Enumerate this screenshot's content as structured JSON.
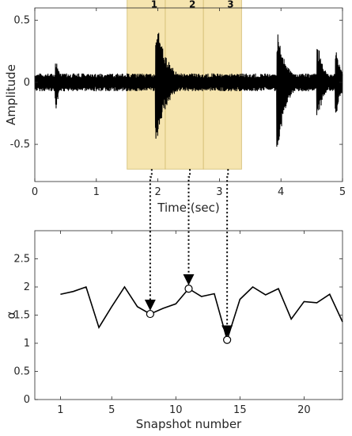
{
  "chart_data": [
    {
      "type": "line",
      "subtype": "waveform",
      "xlabel": "Time (sec)",
      "ylabel": "Amplitude",
      "xlim": [
        0,
        5
      ],
      "ylim": [
        -0.8,
        0.6
      ],
      "xticks": [
        "0",
        "1",
        "2",
        "3",
        "4",
        "5"
      ],
      "yticks": [
        "-0.5",
        "0",
        "0.5"
      ],
      "xtick_values": [
        0,
        1,
        2,
        3,
        4,
        5
      ],
      "ytick_values": [
        -0.5,
        0,
        0.5
      ],
      "highlight_segments": [
        {
          "label": "1",
          "x_start": 1.5,
          "x_end": 2.12
        },
        {
          "label": "2",
          "x_start": 2.12,
          "x_end": 2.74
        },
        {
          "label": "3",
          "x_start": 2.74,
          "x_end": 3.36
        }
      ],
      "segment_ylim": [
        -0.7,
        0.7
      ],
      "bursts": [
        {
          "time": 1.98,
          "peak_pos": 0.5,
          "peak_neg": -0.48,
          "decay": 0.18
        },
        {
          "time": 3.95,
          "peak_pos": 0.43,
          "peak_neg": -0.55,
          "decay": 0.14
        },
        {
          "time": 4.6,
          "peak_pos": 0.32,
          "peak_neg": -0.32,
          "decay": 0.1
        },
        {
          "time": 4.9,
          "peak_pos": 0.28,
          "peak_neg": -0.3,
          "decay": 0.08
        },
        {
          "time": 0.35,
          "peak_pos": 0.2,
          "peak_neg": -0.22,
          "decay": 0.06
        }
      ],
      "noise_amplitude": 0.06,
      "colors": {
        "waveform": "#000000",
        "segment_fill": "#f6e3a8",
        "segment_stroke": "#d8c27a"
      }
    },
    {
      "type": "line",
      "xlabel": "Snapshot number",
      "ylabel": "α",
      "xlim": [
        -1,
        23
      ],
      "ylim": [
        0,
        3
      ],
      "xticks": [
        "1",
        "5",
        "10",
        "15",
        "20"
      ],
      "xtick_values": [
        1,
        5,
        10,
        15,
        20
      ],
      "yticks": [
        "0",
        "0.5",
        "1",
        "1.5",
        "2",
        "2.5"
      ],
      "ytick_values": [
        0,
        0.5,
        1,
        1.5,
        2,
        2.5
      ],
      "x": [
        1,
        2,
        3,
        4,
        5,
        6,
        7,
        8,
        9,
        10,
        11,
        12,
        13,
        14,
        15,
        16,
        17,
        18,
        19,
        20,
        21,
        22,
        23
      ],
      "values": [
        1.87,
        1.92,
        2.0,
        1.28,
        1.65,
        2.0,
        1.65,
        1.52,
        1.62,
        1.7,
        1.97,
        1.83,
        1.88,
        1.06,
        1.78,
        2.0,
        1.86,
        1.97,
        1.43,
        1.74,
        1.72,
        1.87,
        1.38
      ],
      "highlighted_points": [
        {
          "x": 8,
          "y": 1.52,
          "from_segment": "1"
        },
        {
          "x": 11,
          "y": 1.97,
          "from_segment": "2"
        },
        {
          "x": 14,
          "y": 1.06,
          "from_segment": "3"
        }
      ],
      "colors": {
        "line": "#000000"
      }
    }
  ]
}
